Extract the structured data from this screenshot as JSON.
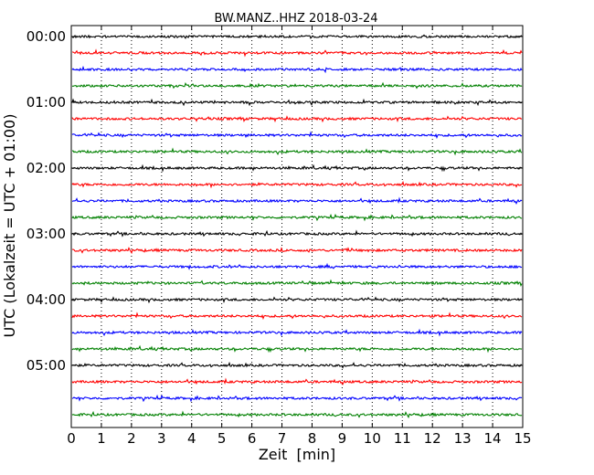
{
  "chart_data": {
    "type": "line",
    "subtype": "helicorder",
    "title": "BW.MANZ..HHZ 2018-03-24",
    "xlabel": "Zeit  [min]",
    "ylabel": "UTC (Lokalzeit = UTC + 01:00)",
    "xlim": [
      0,
      15
    ],
    "x_ticks": [
      "0",
      "1",
      "2",
      "3",
      "4",
      "5",
      "6",
      "7",
      "8",
      "9",
      "10",
      "11",
      "12",
      "13",
      "14",
      "15"
    ],
    "y_tick_labels": [
      "00:00",
      "01:00",
      "02:00",
      "03:00",
      "04:00",
      "05:00"
    ],
    "traces_per_hour": 4,
    "trace_count": 24,
    "trace_colors": [
      "#000000",
      "#ff0000",
      "#0000ff",
      "#008000"
    ],
    "grid": "vertical dotted at each minute"
  }
}
